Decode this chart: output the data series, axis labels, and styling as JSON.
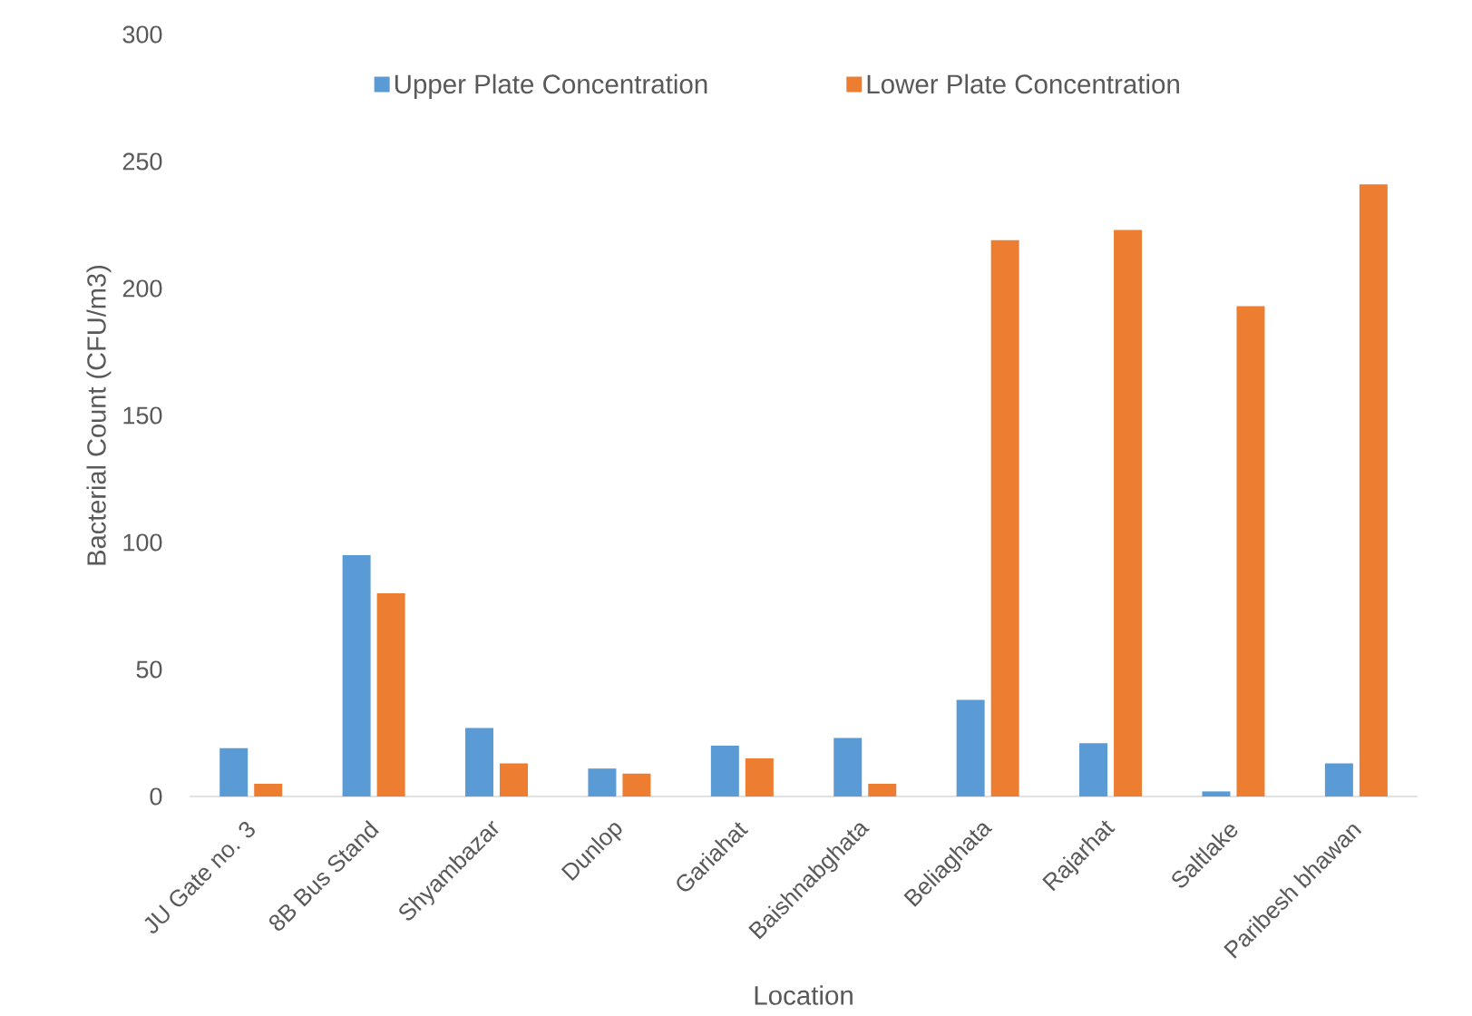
{
  "chart_data": {
    "type": "bar",
    "xlabel": "Location",
    "ylabel": "Bacterial Count (CFU/m3)",
    "categories": [
      "JU Gate no. 3",
      "8B Bus Stand",
      "Shyambazar",
      "Dunlop",
      "Gariahat",
      "Baishnabghata",
      "Beliaghata",
      "Rajarhat",
      "Saltlake",
      "Paribesh bhawan"
    ],
    "series": [
      {
        "name": "Upper Plate Concentration",
        "color": "#5b9bd5",
        "values": [
          19,
          95,
          27,
          11,
          20,
          23,
          38,
          21,
          2,
          13
        ]
      },
      {
        "name": "Lower Plate Concentration",
        "color": "#ed7d31",
        "values": [
          5,
          80,
          13,
          9,
          15,
          5,
          219,
          223,
          193,
          241
        ]
      }
    ],
    "ylim": [
      0,
      300
    ],
    "yticks": [
      0,
      50,
      100,
      150,
      200,
      250,
      300
    ],
    "legend": "top"
  }
}
